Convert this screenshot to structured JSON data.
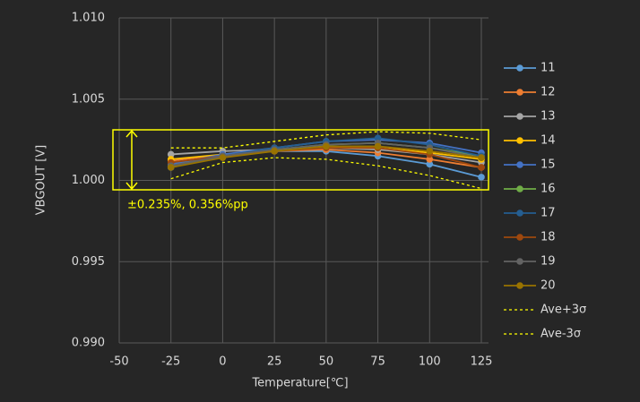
{
  "chart_data": {
    "type": "line",
    "xlabel": "Temperature[℃]",
    "ylabel": "VBGOUT [V]",
    "annotation": "±0.235%, 0.356%pp",
    "x": [
      -25,
      0,
      25,
      50,
      75,
      100,
      125
    ],
    "xlim": [
      -50,
      125
    ],
    "xticks": [
      -50,
      -25,
      0,
      25,
      50,
      75,
      100,
      125
    ],
    "ylim": [
      0.99,
      1.01
    ],
    "yticks": [
      {
        "value": 0.99,
        "label": "0.990"
      },
      0.995,
      {
        "value": 1.0,
        "label": "1.000"
      },
      1.005,
      {
        "value": 1.01,
        "label": "1.010"
      }
    ],
    "grid": true,
    "legend": "right",
    "series": [
      {
        "name": "11",
        "color": "#5b9bd5",
        "values": [
          1.0008,
          1.0015,
          1.0018,
          1.0018,
          1.0015,
          1.001,
          1.0002
        ]
      },
      {
        "name": "12",
        "color": "#ed7d31",
        "values": [
          1.0012,
          1.0016,
          1.0018,
          1.0019,
          1.0017,
          1.0013,
          1.0008
        ]
      },
      {
        "name": "13",
        "color": "#a5a5a5",
        "values": [
          1.0016,
          1.0018,
          1.0019,
          1.002,
          1.0019,
          1.0016,
          1.0011
        ]
      },
      {
        "name": "14",
        "color": "#ffc000",
        "values": [
          1.0013,
          1.0016,
          1.0019,
          1.0021,
          1.002,
          1.0017,
          1.0013
        ]
      },
      {
        "name": "15",
        "color": "#4472c4",
        "values": [
          1.001,
          1.0016,
          1.002,
          1.0024,
          1.0025,
          1.0023,
          1.0017
        ]
      },
      {
        "name": "16",
        "color": "#70ad47",
        "values": [
          1.0009,
          1.0015,
          1.0019,
          1.0022,
          1.0023,
          1.002,
          1.0015
        ]
      },
      {
        "name": "17",
        "color": "#255e91",
        "values": [
          1.0008,
          1.0015,
          1.002,
          1.0024,
          1.0026,
          1.0022,
          1.0015
        ]
      },
      {
        "name": "18",
        "color": "#9e480e",
        "values": [
          1.0011,
          1.0015,
          1.0018,
          1.002,
          1.002,
          1.0016,
          1.0008
        ]
      },
      {
        "name": "19",
        "color": "#636363",
        "values": [
          1.0009,
          1.0015,
          1.0019,
          1.0022,
          1.0023,
          1.002,
          1.0014
        ]
      },
      {
        "name": "20",
        "color": "#997300",
        "values": [
          1.0008,
          1.0014,
          1.0018,
          1.0021,
          1.0021,
          1.0018,
          1.0014
        ]
      },
      {
        "name": "Ave+3σ",
        "color": "#ffff00",
        "dash": true,
        "values": [
          1.002,
          1.002,
          1.0024,
          1.0028,
          1.003,
          1.0029,
          1.0025
        ]
      },
      {
        "name": "Ave-3σ",
        "color": "#ffff00",
        "dash": true,
        "values": [
          1.0001,
          1.0011,
          1.0014,
          1.0013,
          1.0009,
          1.0003,
          0.9995
        ]
      }
    ]
  }
}
